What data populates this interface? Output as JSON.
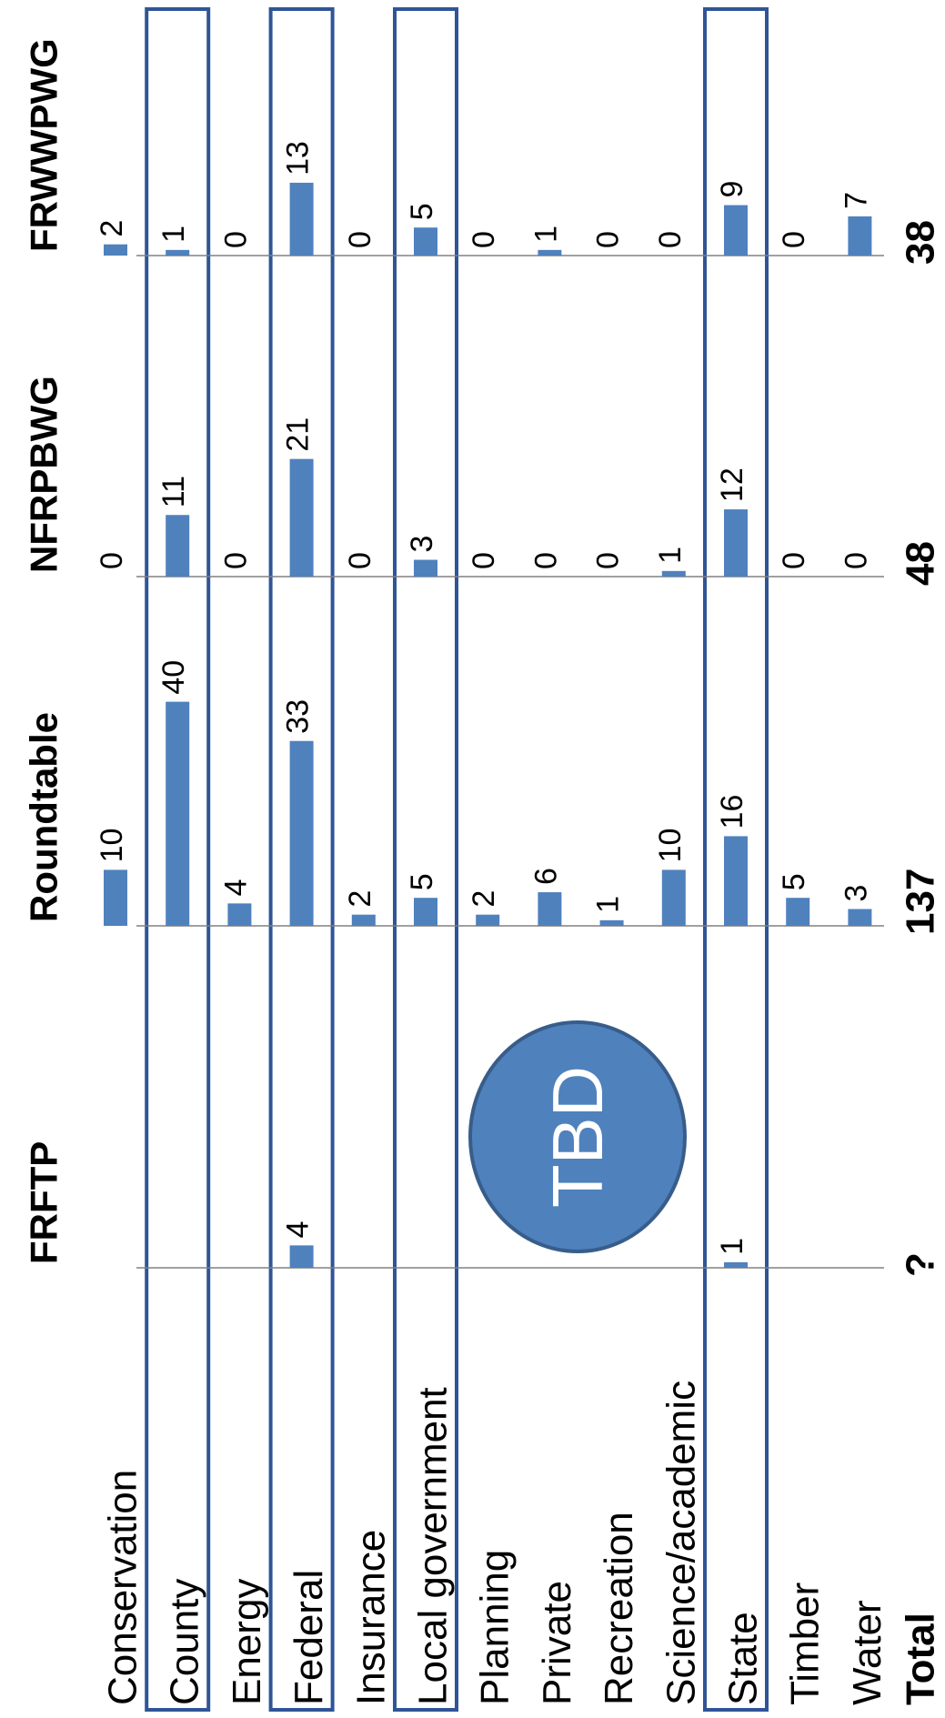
{
  "chart_data": {
    "type": "bar",
    "orientation": "rotated",
    "categories": [
      "Conservation",
      "County",
      "Energy",
      "Federal",
      "Insurance",
      "Local government",
      "Planning",
      "Private",
      "Recreation",
      "Science/academic",
      "State",
      "Timber",
      "Water"
    ],
    "series": [
      {
        "name": "FRFTP",
        "values": [
          null,
          null,
          null,
          4,
          null,
          null,
          null,
          null,
          null,
          null,
          1,
          null,
          null
        ],
        "total": "?"
      },
      {
        "name": "Roundtable",
        "values": [
          10,
          40,
          4,
          33,
          2,
          5,
          2,
          6,
          1,
          10,
          16,
          5,
          3
        ],
        "total": "137"
      },
      {
        "name": "NFRPBWG",
        "values": [
          0,
          11,
          0,
          21,
          0,
          3,
          0,
          0,
          0,
          1,
          12,
          0,
          0
        ],
        "total": "48"
      },
      {
        "name": "FRWWPWG",
        "values": [
          2,
          1,
          0,
          13,
          0,
          5,
          0,
          1,
          0,
          0,
          9,
          0,
          7
        ],
        "total": "38"
      }
    ],
    "total_label": "Total",
    "highlighted_categories": [
      "County",
      "Federal",
      "Local government",
      "State"
    ],
    "annotation": "TBD",
    "colors": {
      "bar": "#4f81bd",
      "highlight_box": "#2f5597",
      "axis": "#808080"
    }
  }
}
